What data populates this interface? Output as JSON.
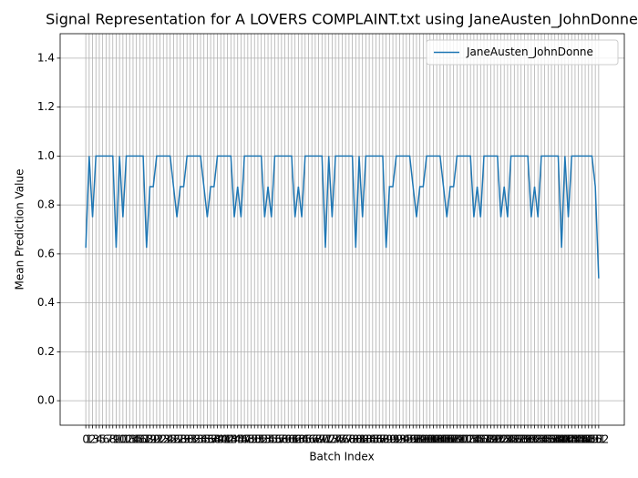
{
  "chart_data": {
    "type": "line",
    "title": "Signal Representation for A LOVERS COMPLAINT.txt using JaneAusten_JohnDonne",
    "x_label": "Batch Index",
    "y_label": "Mean Prediction Value",
    "x": [
      0,
      1,
      2,
      3,
      4,
      5,
      6,
      7,
      8,
      9,
      10,
      11,
      12,
      13,
      14,
      15,
      16,
      17,
      18,
      19,
      20,
      21,
      22,
      23,
      24,
      25,
      26,
      27,
      28,
      29,
      30,
      31,
      32,
      33,
      34,
      35,
      36,
      37,
      38,
      39,
      40,
      41,
      42,
      43,
      44,
      45,
      46,
      47,
      48,
      49,
      50,
      51,
      52,
      53,
      54,
      55,
      56,
      57,
      58,
      59,
      60,
      61,
      62,
      63,
      64,
      65,
      66,
      67,
      68,
      69,
      70,
      71,
      72,
      73,
      74,
      75,
      76,
      77,
      78,
      79,
      80,
      81,
      82,
      83,
      84,
      85,
      86,
      87,
      88,
      89,
      90,
      91,
      92,
      93,
      94,
      95,
      96,
      97,
      98,
      99,
      100,
      101,
      102,
      103,
      104,
      105,
      106,
      107,
      108,
      109,
      110,
      111,
      112,
      113,
      114,
      115,
      116,
      117,
      118,
      119,
      120,
      121,
      122,
      123,
      124,
      125,
      126,
      127,
      128,
      129,
      130,
      131,
      132,
      133,
      134,
      135,
      136,
      137,
      138,
      139,
      140,
      141,
      142,
      143,
      144,
      145,
      146,
      147,
      148,
      149,
      150,
      151,
      152
    ],
    "series": [
      {
        "name": "JaneAusten_JohnDonne",
        "color": "#1f77b4",
        "values": [
          0.625,
          1,
          0.75,
          1,
          1,
          1,
          1,
          1,
          1,
          0.625,
          1,
          0.75,
          1,
          1,
          1,
          1,
          1,
          1,
          0.625,
          0.875,
          0.875,
          1,
          1,
          1,
          1,
          1,
          0.875,
          0.75,
          0.875,
          0.875,
          1,
          1,
          1,
          1,
          1,
          0.875,
          0.75,
          0.875,
          0.875,
          1,
          1,
          1,
          1,
          1,
          0.75,
          0.875,
          0.75,
          1,
          1,
          1,
          1,
          1,
          1,
          0.75,
          0.875,
          0.75,
          1,
          1,
          1,
          1,
          1,
          1,
          0.75,
          0.875,
          0.75,
          1,
          1,
          1,
          1,
          1,
          1,
          0.625,
          1,
          0.75,
          1,
          1,
          1,
          1,
          1,
          1,
          0.625,
          1,
          0.75,
          1,
          1,
          1,
          1,
          1,
          1,
          0.625,
          0.875,
          0.875,
          1,
          1,
          1,
          1,
          1,
          0.875,
          0.75,
          0.875,
          0.875,
          1,
          1,
          1,
          1,
          1,
          0.875,
          0.75,
          0.875,
          0.875,
          1,
          1,
          1,
          1,
          1,
          0.75,
          0.875,
          0.75,
          1,
          1,
          1,
          1,
          1,
          0.75,
          0.875,
          0.75,
          1,
          1,
          1,
          1,
          1,
          1,
          0.75,
          0.875,
          0.75,
          1,
          1,
          1,
          1,
          1,
          1,
          0.625,
          1,
          0.75,
          1,
          1,
          1,
          1,
          1,
          1,
          1,
          0.875,
          0.5
        ]
      }
    ],
    "xlim": [
      -7.6,
      159.6
    ],
    "xticks": [
      0,
      1,
      2,
      3,
      4,
      5,
      6,
      7,
      8,
      9,
      10,
      11,
      12,
      13,
      14,
      15,
      16,
      17,
      18,
      19,
      20,
      21,
      22,
      23,
      24,
      25,
      26,
      27,
      28,
      29,
      30,
      31,
      32,
      33,
      34,
      35,
      36,
      37,
      38,
      39,
      40,
      41,
      42,
      43,
      44,
      45,
      46,
      47,
      48,
      49,
      50,
      51,
      52,
      53,
      54,
      55,
      56,
      57,
      58,
      59,
      60,
      61,
      62,
      63,
      64,
      65,
      66,
      67,
      68,
      69,
      70,
      71,
      72,
      73,
      74,
      75,
      76,
      77,
      78,
      79,
      80,
      81,
      82,
      83,
      84,
      85,
      86,
      87,
      88,
      89,
      90,
      91,
      92,
      93,
      94,
      95,
      96,
      97,
      98,
      99,
      100,
      101,
      102,
      103,
      104,
      105,
      106,
      107,
      108,
      109,
      110,
      111,
      112,
      113,
      114,
      115,
      116,
      117,
      118,
      119,
      120,
      121,
      122,
      123,
      124,
      125,
      126,
      127,
      128,
      129,
      130,
      131,
      132,
      133,
      134,
      135,
      136,
      137,
      138,
      139,
      140,
      141,
      142,
      143,
      144,
      145,
      146,
      147,
      148,
      149,
      150,
      151,
      152
    ],
    "ylim": [
      -0.1,
      1.5
    ],
    "yticks": [
      {
        "value": 0,
        "label": "0.0"
      },
      {
        "value": 0.2,
        "label": "0.2"
      },
      {
        "value": 0.4,
        "label": "0.4"
      },
      {
        "value": 0.6,
        "label": "0.6"
      },
      {
        "value": 0.8,
        "label": "0.8"
      },
      {
        "value": 1,
        "label": "1.0"
      },
      {
        "value": 1.2,
        "label": "1.2"
      },
      {
        "value": 1.4,
        "label": "1.4"
      }
    ],
    "grid": true,
    "legend": "upper right"
  }
}
